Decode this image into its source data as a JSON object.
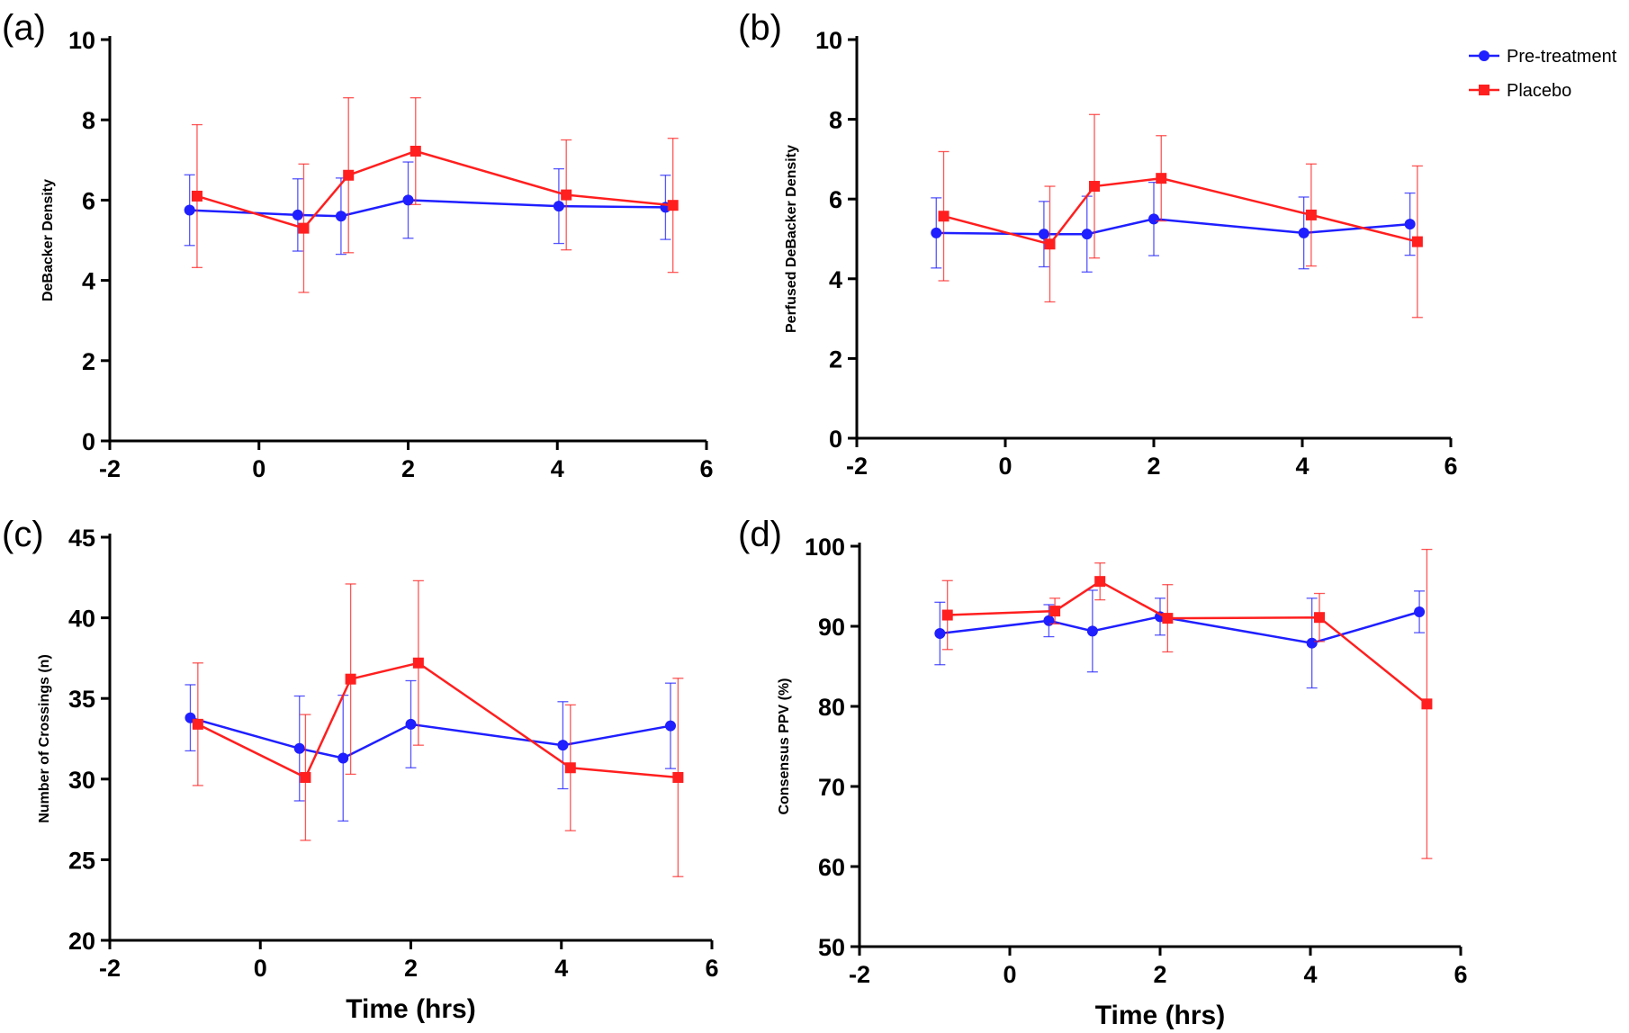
{
  "legend": {
    "items": [
      {
        "label": "Pre-treatment",
        "color": "#1f1fff",
        "marker": "circle"
      },
      {
        "label": "Placebo",
        "color": "#ff1f1f",
        "marker": "square"
      }
    ],
    "placement": "top-right"
  },
  "chart_data": [
    {
      "panel_label": "(a)",
      "type": "line",
      "xlabel": "",
      "ylabel": "DeBacker Density",
      "xlim": [
        -2,
        6
      ],
      "ylim": [
        0,
        10
      ],
      "xticks": [
        "-2",
        "0",
        "2",
        "4",
        "6"
      ],
      "yticks": [
        "0",
        "2",
        "4",
        "6",
        "8",
        "10"
      ],
      "grid": false,
      "series": [
        {
          "name": "Pre-treatment",
          "color": "#1f1fff",
          "marker": "circle",
          "x": [
            -0.93,
            0.52,
            1.1,
            2.0,
            4.02,
            5.45
          ],
          "y": [
            5.75,
            5.63,
            5.6,
            6.0,
            5.85,
            5.82
          ],
          "err": [
            0.88,
            0.9,
            0.95,
            0.95,
            0.93,
            0.8
          ]
        },
        {
          "name": "Placebo",
          "color": "#ff1f1f",
          "marker": "square",
          "x": [
            -0.83,
            0.6,
            1.2,
            2.1,
            4.12,
            5.55
          ],
          "y": [
            6.1,
            5.3,
            6.62,
            7.22,
            6.13,
            5.87
          ],
          "err": [
            1.78,
            1.6,
            1.93,
            1.33,
            1.37,
            1.67
          ]
        }
      ]
    },
    {
      "panel_label": "(b)",
      "type": "line",
      "xlabel": "",
      "ylabel": "Perfused DeBacker Density",
      "xlim": [
        -2,
        6
      ],
      "ylim": [
        0,
        10
      ],
      "xticks": [
        "-2",
        "0",
        "2",
        "4",
        "6"
      ],
      "yticks": [
        "0",
        "2",
        "4",
        "6",
        "8",
        "10"
      ],
      "grid": false,
      "series": [
        {
          "name": "Pre-treatment",
          "color": "#1f1fff",
          "marker": "circle",
          "x": [
            -0.93,
            0.52,
            1.1,
            2.0,
            4.02,
            5.45
          ],
          "y": [
            5.15,
            5.12,
            5.12,
            5.5,
            5.15,
            5.37
          ],
          "err": [
            0.88,
            0.82,
            0.95,
            0.92,
            0.9,
            0.78
          ]
        },
        {
          "name": "Placebo",
          "color": "#ff1f1f",
          "marker": "square",
          "x": [
            -0.83,
            0.6,
            1.2,
            2.1,
            4.12,
            5.55
          ],
          "y": [
            5.57,
            4.87,
            6.32,
            6.52,
            5.6,
            4.93
          ],
          "err": [
            1.62,
            1.45,
            1.8,
            1.07,
            1.28,
            1.9
          ]
        }
      ]
    },
    {
      "panel_label": "(c)",
      "type": "line",
      "xlabel": "Time (hrs)",
      "ylabel": "Number of Crossings (n)",
      "xlim": [
        -2,
        6
      ],
      "ylim": [
        20,
        45
      ],
      "xticks": [
        "-2",
        "0",
        "2",
        "4",
        "6"
      ],
      "yticks": [
        "20",
        "25",
        "30",
        "35",
        "40",
        "45"
      ],
      "grid": false,
      "series": [
        {
          "name": "Pre-treatment",
          "color": "#1f1fff",
          "marker": "circle",
          "x": [
            -0.93,
            0.52,
            1.1,
            2.0,
            4.02,
            5.45
          ],
          "y": [
            33.8,
            31.9,
            31.3,
            33.4,
            32.1,
            33.3
          ],
          "err": [
            2.05,
            3.25,
            3.9,
            2.7,
            2.7,
            2.65
          ]
        },
        {
          "name": "Placebo",
          "color": "#ff1f1f",
          "marker": "square",
          "x": [
            -0.83,
            0.6,
            1.2,
            2.1,
            4.12,
            5.55
          ],
          "y": [
            33.4,
            30.1,
            36.2,
            37.2,
            30.7,
            30.1
          ],
          "err": [
            3.8,
            3.9,
            5.9,
            5.1,
            3.9,
            6.15
          ]
        }
      ]
    },
    {
      "panel_label": "(d)",
      "type": "line",
      "xlabel": "Time (hrs)",
      "ylabel": "Consensus PPV (%)",
      "xlim": [
        -2,
        6
      ],
      "ylim": [
        50,
        100
      ],
      "xticks": [
        "-2",
        "0",
        "2",
        "4",
        "6"
      ],
      "yticks": [
        "50",
        "60",
        "70",
        "80",
        "90",
        "100"
      ],
      "grid": false,
      "series": [
        {
          "name": "Pre-treatment",
          "color": "#1f1fff",
          "marker": "circle",
          "x": [
            -0.93,
            0.52,
            1.1,
            2.0,
            4.02,
            5.45
          ],
          "y": [
            89.1,
            90.7,
            89.4,
            91.2,
            87.9,
            91.8
          ],
          "err": [
            3.9,
            2.0,
            5.1,
            2.3,
            5.6,
            2.6
          ]
        },
        {
          "name": "Placebo",
          "color": "#ff1f1f",
          "marker": "square",
          "x": [
            -0.83,
            0.6,
            1.2,
            2.1,
            4.12,
            5.55
          ],
          "y": [
            91.4,
            91.9,
            95.6,
            91.0,
            91.1,
            80.3
          ],
          "err": [
            4.3,
            1.6,
            2.3,
            4.2,
            3.0,
            19.3
          ]
        }
      ]
    }
  ]
}
